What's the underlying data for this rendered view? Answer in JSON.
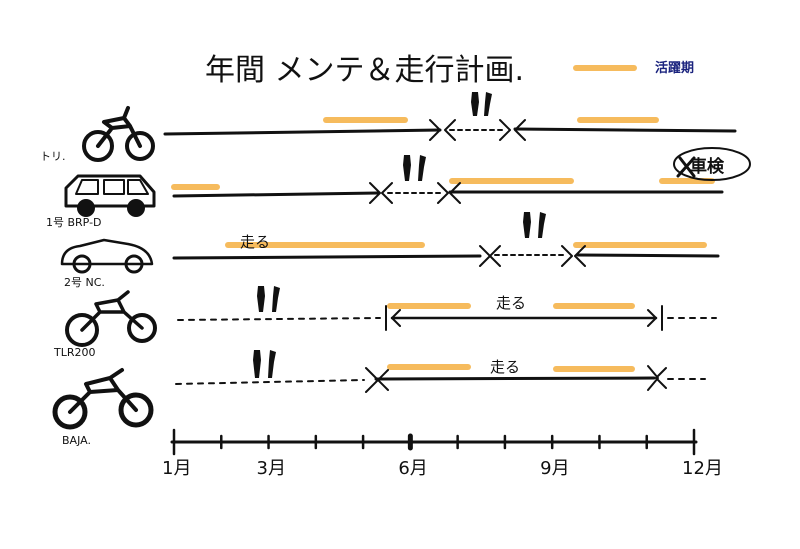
{
  "title": "年間 メンテ＆走行計画.",
  "legend": {
    "label": "活躍期",
    "color": "#f5b041"
  },
  "axis": {
    "ticks": [
      {
        "month": 1,
        "label": "1月"
      },
      {
        "month": 3,
        "label": "3月"
      },
      {
        "month": 6,
        "label": "6月"
      },
      {
        "month": 9,
        "label": "9月"
      },
      {
        "month": 12,
        "label": "12月"
      }
    ]
  },
  "vehicles": [
    {
      "id": "v1",
      "label": "トリ.",
      "icon": "offroad-bike-icon"
    },
    {
      "id": "v2",
      "label": "1号 BRP-D",
      "icon": "car-icon"
    },
    {
      "id": "v3",
      "label": "2号 NC.",
      "icon": "convertible-icon"
    },
    {
      "id": "v4",
      "label": "TLR200",
      "icon": "trials-bike-icon"
    },
    {
      "id": "v5",
      "label": "BAJA.",
      "icon": "dirt-bike-icon"
    }
  ],
  "annotations": {
    "run_label": "走る",
    "inspection": "車検"
  },
  "colors": {
    "ink": "#111111",
    "highlight": "#f5b041",
    "legend_text": "#1a237e"
  }
}
